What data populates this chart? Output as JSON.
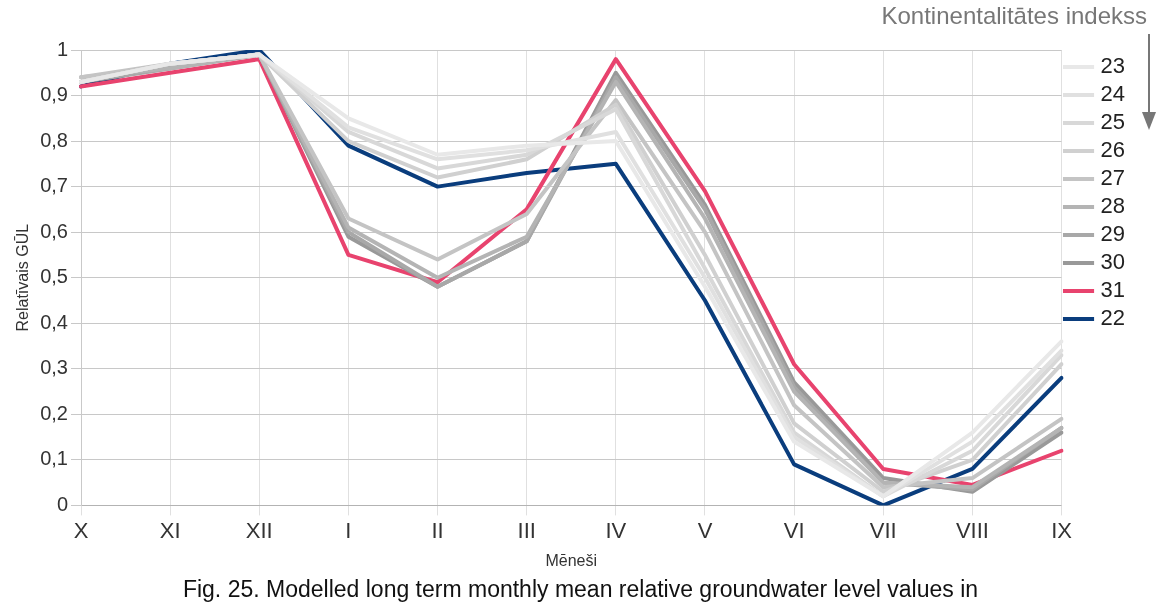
{
  "chart_data": {
    "type": "line",
    "xlabel": "Mēneši",
    "ylabel": "Relatīvais GŪL",
    "legend_title": "Kontinentalitātes indekss",
    "legend": "right",
    "grid": true,
    "marker": "none",
    "line_style": "solid",
    "categories": [
      "X",
      "XI",
      "XII",
      "I",
      "II",
      "III",
      "IV",
      "V",
      "VI",
      "VII",
      "VIII",
      "IX"
    ],
    "ylim": [
      0,
      1
    ],
    "yticks": [
      0,
      {
        "value": 0.1,
        "label": "0,1"
      },
      {
        "value": 0.2,
        "label": "0,2"
      },
      {
        "value": 0.3,
        "label": "0,3"
      },
      {
        "value": 0.4,
        "label": "0,4"
      },
      {
        "value": 0.5,
        "label": "0,5"
      },
      {
        "value": 0.6,
        "label": "0,6"
      },
      {
        "value": 0.7,
        "label": "0,7"
      },
      {
        "value": 0.8,
        "label": "0,8"
      },
      {
        "value": 0.9,
        "label": "0,9"
      },
      1
    ],
    "series": [
      {
        "name": "23",
        "color": "#e8e8e8",
        "values": [
          0.93,
          0.97,
          0.99,
          0.85,
          0.77,
          0.79,
          0.8,
          0.48,
          0.14,
          0.02,
          0.16,
          0.36
        ]
      },
      {
        "name": "24",
        "color": "#e0e0e0",
        "values": [
          0.93,
          0.97,
          0.99,
          0.83,
          0.76,
          0.78,
          0.82,
          0.5,
          0.15,
          0.02,
          0.14,
          0.34
        ]
      },
      {
        "name": "25",
        "color": "#d8d8d8",
        "values": [
          0.93,
          0.97,
          0.99,
          0.82,
          0.74,
          0.77,
          0.87,
          0.52,
          0.16,
          0.02,
          0.12,
          0.33
        ]
      },
      {
        "name": "26",
        "color": "#d0d0d0",
        "values": [
          0.93,
          0.97,
          0.99,
          0.8,
          0.72,
          0.76,
          0.88,
          0.55,
          0.18,
          0.03,
          0.1,
          0.31
        ]
      },
      {
        "name": "27",
        "color": "#c4c4c4",
        "values": [
          0.94,
          0.97,
          0.99,
          0.63,
          0.54,
          0.64,
          0.89,
          0.6,
          0.22,
          0.04,
          0.06,
          0.19
        ]
      },
      {
        "name": "28",
        "color": "#b4b4b4",
        "values": [
          0.94,
          0.96,
          0.99,
          0.61,
          0.5,
          0.59,
          0.93,
          0.63,
          0.25,
          0.05,
          0.04,
          0.17
        ]
      },
      {
        "name": "29",
        "color": "#a8a8a8",
        "values": [
          0.93,
          0.96,
          0.99,
          0.6,
          0.48,
          0.58,
          0.94,
          0.65,
          0.26,
          0.05,
          0.035,
          0.17
        ]
      },
      {
        "name": "30",
        "color": "#999999",
        "values": [
          0.93,
          0.96,
          0.99,
          0.59,
          0.48,
          0.58,
          0.95,
          0.66,
          0.27,
          0.06,
          0.03,
          0.16
        ]
      },
      {
        "name": "31",
        "color": "#e8436e",
        "values": [
          0.92,
          0.95,
          0.98,
          0.55,
          0.49,
          0.65,
          0.98,
          0.69,
          0.31,
          0.08,
          0.045,
          0.12
        ]
      },
      {
        "name": "22",
        "color": "#0a3d7d",
        "values": [
          0.92,
          0.97,
          1.0,
          0.79,
          0.7,
          0.73,
          0.75,
          0.45,
          0.09,
          0.0,
          0.08,
          0.28
        ]
      }
    ],
    "annotations": [
      "Fig. 25. Modelled long term monthly mean relative groundwater level values in"
    ]
  }
}
